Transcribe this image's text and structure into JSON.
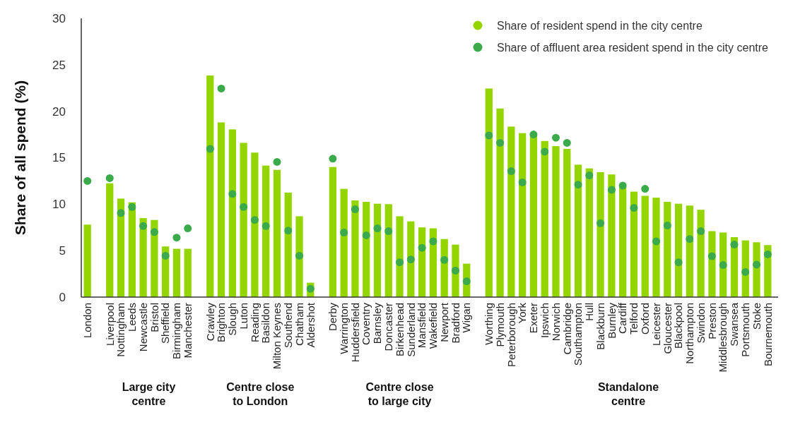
{
  "chart_data": {
    "type": "bar",
    "ylabel": "Share of all spend (%)",
    "ylim": [
      0,
      30
    ],
    "yticks": [
      0,
      5,
      10,
      15,
      20,
      25,
      30
    ],
    "legend": "top right",
    "marker": "circle",
    "categories": [
      "London",
      null,
      "Liverpool",
      "Nottingham",
      "Leeds",
      "Newcastle",
      "Bristol",
      "Sheffield",
      "Birmingham",
      "Manchester",
      null,
      "Crawley",
      "Brighton",
      "Slough",
      "Luton",
      "Reading",
      "Basildon",
      "Milton Keynes",
      "Southend",
      "Chatham",
      "Aldershot",
      null,
      "Derby",
      "Warrington",
      "Huddersfield",
      "Coventry",
      "Barnsley",
      "Doncaster",
      "Birkenhead",
      "Sunderland",
      "Mansfield",
      "Wakefield",
      "Newport",
      "Bradford",
      "Wigan",
      null,
      "Worthing",
      "Plymouth",
      "Peterborough",
      "York",
      "Exeter",
      "Ipswich",
      "Norwich",
      "Cambridge",
      "Southampton",
      "Hull",
      "Blackburn",
      "Burnley",
      "Cardiff",
      "Telford",
      "Oxford",
      "Leicester",
      "Gloucester",
      "Blackpool",
      "Northampton",
      "Swindon",
      "Preston",
      "Middlesbrough",
      "Swansea",
      "Portsmouth",
      "Stoke",
      "Bournemouth"
    ],
    "series": [
      {
        "name": "Share of resident spend in the city centre",
        "color": "#94d500",
        "values": [
          7.8,
          null,
          12.25,
          10.6,
          10.2,
          8.5,
          8.3,
          5.45,
          5.2,
          5.2,
          null,
          23.85,
          18.8,
          18.05,
          16.6,
          15.55,
          14.15,
          13.7,
          11.25,
          8.7,
          1.55,
          null,
          14.0,
          11.65,
          10.4,
          10.25,
          10.05,
          10.0,
          8.7,
          8.15,
          7.5,
          7.4,
          6.25,
          5.65,
          3.6,
          null,
          22.45,
          20.3,
          18.35,
          17.65,
          17.3,
          16.8,
          16.25,
          15.95,
          14.25,
          13.85,
          13.45,
          13.2,
          11.9,
          11.35,
          10.9,
          10.7,
          10.25,
          10.05,
          9.85,
          9.4,
          7.1,
          6.95,
          6.45,
          6.1,
          5.9,
          5.6
        ]
      },
      {
        "name": "Share of affluent area resident spend in the city centre",
        "type": "scatter",
        "color": "#3aaa4a",
        "values": [
          12.5,
          null,
          12.8,
          9.05,
          9.7,
          7.65,
          7.0,
          4.45,
          6.4,
          7.4,
          null,
          15.95,
          22.45,
          11.1,
          9.7,
          8.3,
          7.65,
          14.55,
          7.15,
          4.45,
          0.9,
          null,
          14.9,
          6.95,
          9.45,
          6.65,
          7.4,
          7.1,
          3.75,
          4.05,
          5.3,
          6.0,
          4.0,
          2.85,
          1.7,
          null,
          17.4,
          16.6,
          13.55,
          12.35,
          17.5,
          15.65,
          17.15,
          16.6,
          12.1,
          13.1,
          7.95,
          11.55,
          12.0,
          9.6,
          11.65,
          6.0,
          7.7,
          3.75,
          6.25,
          7.1,
          4.4,
          3.45,
          5.65,
          2.7,
          3.5,
          4.6
        ]
      }
    ],
    "annotations": [
      "Large city centre",
      "Centre close to London",
      "Centre close to large city",
      "Standalone centre"
    ]
  }
}
